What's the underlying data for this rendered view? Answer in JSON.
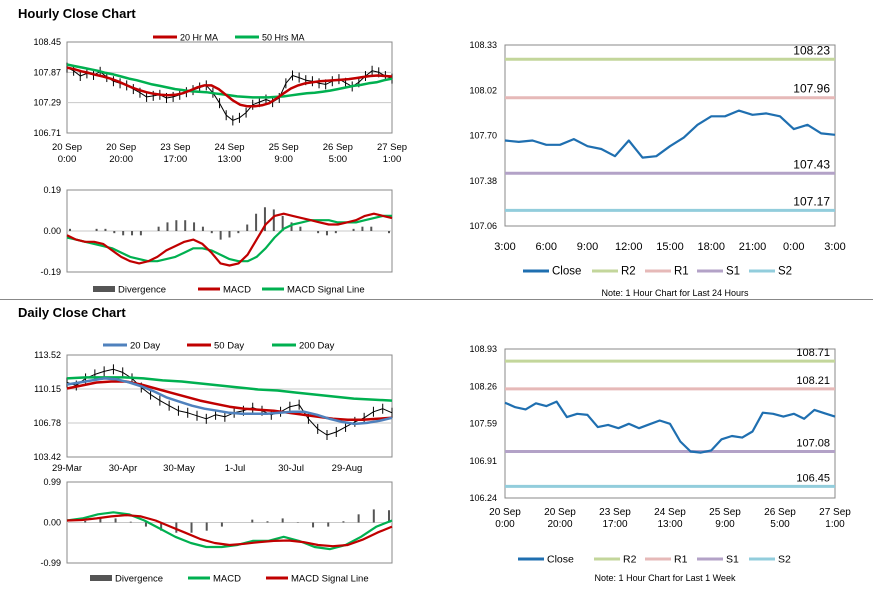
{
  "sections": {
    "hourly_title": "Hourly Close Chart",
    "daily_title": "Daily Close Chart"
  },
  "colors": {
    "ma_short": "#c00000",
    "ma_long": "#00b050",
    "ma_daily20": "#4f81bd",
    "close": "#1f6fb0",
    "r2": "#c3d69b",
    "r1": "#e6b9b8",
    "s1": "#b3a2c7",
    "s2": "#92cddc",
    "bars": "#555555",
    "grid": "#c8c8c8"
  },
  "chart_data": [
    {
      "id": "hourly_price",
      "type": "line",
      "ylim": [
        106.71,
        108.45
      ],
      "yticks": [
        "108.45",
        "107.87",
        "107.29",
        "106.71"
      ],
      "xticks": [
        [
          "20 Sep",
          "0:00"
        ],
        [
          "20 Sep",
          "20:00"
        ],
        [
          "23 Sep",
          "17:00"
        ],
        [
          "24 Sep",
          "13:00"
        ],
        [
          "25 Sep",
          "9:00"
        ],
        [
          "26 Sep",
          "5:00"
        ],
        [
          "27 Sep",
          "1:00"
        ]
      ],
      "legend": [
        "20 Hr MA",
        "50 Hrs MA"
      ],
      "price": [
        107.96,
        107.9,
        107.8,
        107.85,
        107.82,
        107.88,
        107.78,
        107.7,
        107.66,
        107.62,
        107.55,
        107.48,
        107.4,
        107.42,
        107.44,
        107.38,
        107.4,
        107.44,
        107.49,
        107.53,
        107.58,
        107.62,
        107.48,
        107.28,
        107.05,
        106.95,
        107.0,
        107.1,
        107.25,
        107.3,
        107.35,
        107.3,
        107.38,
        107.66,
        107.81,
        107.77,
        107.72,
        107.7,
        107.66,
        107.64,
        107.7,
        107.74,
        107.67,
        107.6,
        107.68,
        107.8,
        107.9,
        107.87,
        107.8,
        107.75
      ],
      "ma_short": [
        107.96,
        107.93,
        107.89,
        107.86,
        107.82,
        107.79,
        107.75,
        107.7,
        107.64,
        107.58,
        107.53,
        107.49,
        107.46,
        107.44,
        107.43,
        107.44,
        107.47,
        107.52,
        107.58,
        107.62,
        107.62,
        107.55,
        107.44,
        107.33,
        107.25,
        107.22,
        107.22,
        107.24,
        107.28,
        107.37,
        107.47,
        107.56,
        107.62,
        107.66,
        107.68,
        107.7,
        107.71,
        107.72,
        107.73,
        107.74,
        107.76,
        107.78,
        107.8,
        107.81,
        107.8,
        107.79
      ],
      "ma_long": [
        108.02,
        107.99,
        107.96,
        107.93,
        107.9,
        107.86,
        107.83,
        107.79,
        107.75,
        107.72,
        107.68,
        107.64,
        107.61,
        107.58,
        107.55,
        107.53,
        107.51,
        107.5,
        107.49,
        107.47,
        107.45,
        107.43,
        107.41,
        107.4,
        107.39,
        107.39,
        107.39,
        107.4,
        107.41,
        107.43,
        107.45,
        107.47,
        107.48,
        107.5,
        107.52,
        107.55,
        107.58,
        107.61,
        107.63,
        107.66,
        107.68,
        107.72,
        107.75
      ]
    },
    {
      "id": "hourly_macd",
      "type": "line",
      "ylim": [
        -0.19,
        0.19
      ],
      "yticks": [
        "0.19",
        "0.00",
        "-0.19"
      ],
      "legend": [
        "Divergence",
        "MACD",
        "MACD Signal Line"
      ],
      "macd": [
        -0.02,
        -0.04,
        -0.05,
        -0.05,
        -0.06,
        -0.09,
        -0.12,
        -0.14,
        -0.15,
        -0.14,
        -0.12,
        -0.09,
        -0.07,
        -0.05,
        -0.04,
        -0.06,
        -0.1,
        -0.15,
        -0.16,
        -0.15,
        -0.11,
        -0.04,
        0.03,
        0.07,
        0.08,
        0.07,
        0.06,
        0.05,
        0.04,
        0.03,
        0.03,
        0.04,
        0.05,
        0.07,
        0.08,
        0.07,
        0.06
      ],
      "signal": [
        -0.03,
        -0.04,
        -0.05,
        -0.06,
        -0.07,
        -0.08,
        -0.1,
        -0.12,
        -0.13,
        -0.14,
        -0.14,
        -0.13,
        -0.12,
        -0.1,
        -0.08,
        -0.08,
        -0.09,
        -0.11,
        -0.13,
        -0.14,
        -0.14,
        -0.12,
        -0.08,
        -0.03,
        0.01,
        0.03,
        0.04,
        0.05,
        0.05,
        0.05,
        0.04,
        0.04,
        0.04,
        0.05,
        0.06,
        0.07,
        0.07
      ],
      "divergence": [
        0.01,
        0.0,
        0.0,
        0.01,
        0.01,
        -0.01,
        -0.02,
        -0.02,
        -0.02,
        0.0,
        0.02,
        0.04,
        0.05,
        0.05,
        0.04,
        0.02,
        -0.01,
        -0.04,
        -0.03,
        -0.01,
        0.03,
        0.08,
        0.11,
        0.1,
        0.07,
        0.04,
        0.02,
        0.0,
        -0.01,
        -0.02,
        -0.01,
        0.0,
        0.01,
        0.02,
        0.02,
        0.0,
        -0.01
      ]
    },
    {
      "id": "hourly_pivots",
      "type": "line",
      "ylim": [
        107.06,
        108.33
      ],
      "yticks": [
        "108.33",
        "108.02",
        "107.70",
        "107.38",
        "107.06"
      ],
      "xticks": [
        "3:00",
        "6:00",
        "9:00",
        "12:00",
        "15:00",
        "18:00",
        "21:00",
        "0:00",
        "3:00"
      ],
      "levels": {
        "R2": 108.23,
        "R1": 107.96,
        "S1": 107.43,
        "S2": 107.17
      },
      "level_labels": {
        "R2": "108.23",
        "R1": "107.96",
        "S1": "107.43",
        "S2": "107.17"
      },
      "close": [
        107.66,
        107.65,
        107.66,
        107.63,
        107.63,
        107.67,
        107.62,
        107.6,
        107.55,
        107.66,
        107.54,
        107.55,
        107.62,
        107.68,
        107.77,
        107.83,
        107.83,
        107.87,
        107.84,
        107.85,
        107.83,
        107.74,
        107.77,
        107.71,
        107.7
      ],
      "legend": [
        "Close",
        "R2",
        "R1",
        "S1",
        "S2"
      ],
      "note": "Note: 1 Hour Chart for Last 24 Hours"
    },
    {
      "id": "daily_price",
      "type": "line",
      "ylim": [
        103.42,
        113.52
      ],
      "yticks": [
        "113.52",
        "110.15",
        "106.78",
        "103.42"
      ],
      "xticks": [
        "29-Mar",
        "30-Apr",
        "30-May",
        "1-Jul",
        "30-Jul",
        "29-Aug"
      ],
      "legend": [
        "20 Day",
        "50 Day",
        "200 Day"
      ],
      "price": [
        110.8,
        110.5,
        111.2,
        111.6,
        111.9,
        112.1,
        111.8,
        111.2,
        110.3,
        109.6,
        109.0,
        108.5,
        108.0,
        107.8,
        107.5,
        107.2,
        107.6,
        107.4,
        107.8,
        108.0,
        108.3,
        108.0,
        107.6,
        107.9,
        108.4,
        108.6,
        107.2,
        106.2,
        105.6,
        105.9,
        106.4,
        106.9,
        107.3,
        107.9,
        108.2,
        107.8
      ],
      "ma_20": [
        110.6,
        110.8,
        111.0,
        111.2,
        111.1,
        110.8,
        110.4,
        109.9,
        109.3,
        108.9,
        108.5,
        108.2,
        108.0,
        107.8,
        107.7,
        107.7,
        107.7,
        107.8,
        107.9,
        107.9,
        107.6,
        107.2,
        106.9,
        106.7,
        106.8,
        107.0,
        107.3
      ],
      "ma_50": [
        110.2,
        110.5,
        110.8,
        110.9,
        110.9,
        110.6,
        110.2,
        109.8,
        109.4,
        109.0,
        108.7,
        108.4,
        108.2,
        108.1,
        108.0,
        107.8,
        107.6,
        107.4,
        107.2,
        107.1,
        107.1,
        107.2,
        107.3
      ],
      "ma_200": [
        111.2,
        111.3,
        111.3,
        111.3,
        111.2,
        111.0,
        110.9,
        110.7,
        110.5,
        110.3,
        110.1,
        110.0,
        109.8,
        109.6,
        109.4,
        109.2,
        109.1,
        109.0
      ],
      "note": ""
    },
    {
      "id": "daily_macd",
      "type": "line",
      "ylim": [
        -0.99,
        0.99
      ],
      "yticks": [
        "0.99",
        "0.00",
        "-0.99"
      ],
      "legend": [
        "Divergence",
        "MACD",
        "MACD Signal Line"
      ],
      "macd": [
        0.05,
        0.1,
        0.2,
        0.25,
        0.2,
        0.05,
        -0.15,
        -0.35,
        -0.5,
        -0.6,
        -0.6,
        -0.55,
        -0.45,
        -0.45,
        -0.35,
        -0.45,
        -0.6,
        -0.65,
        -0.55,
        -0.35,
        -0.1,
        0.05
      ],
      "signal": [
        0.05,
        0.06,
        0.1,
        0.15,
        0.18,
        0.15,
        0.05,
        -0.1,
        -0.25,
        -0.4,
        -0.5,
        -0.55,
        -0.52,
        -0.48,
        -0.45,
        -0.44,
        -0.48,
        -0.55,
        -0.58,
        -0.55,
        -0.42,
        -0.25,
        -0.1
      ],
      "divergence": [
        0.0,
        0.04,
        0.1,
        0.1,
        0.02,
        -0.1,
        -0.2,
        -0.25,
        -0.25,
        -0.2,
        -0.1,
        0.0,
        0.07,
        0.03,
        0.1,
        -0.01,
        -0.12,
        -0.1,
        0.03,
        0.2,
        0.32,
        0.3
      ]
    },
    {
      "id": "daily_pivots",
      "type": "line",
      "ylim": [
        106.24,
        108.93
      ],
      "yticks": [
        "108.93",
        "108.26",
        "107.59",
        "106.91",
        "106.24"
      ],
      "xticks": [
        [
          "20 Sep",
          "0:00"
        ],
        [
          "20 Sep",
          "20:00"
        ],
        [
          "23 Sep",
          "17:00"
        ],
        [
          "24 Sep",
          "13:00"
        ],
        [
          "25 Sep",
          "9:00"
        ],
        [
          "26 Sep",
          "5:00"
        ],
        [
          "27 Sep",
          "1:00"
        ]
      ],
      "levels": {
        "R2": 108.71,
        "R1": 108.21,
        "S1": 107.08,
        "S2": 106.45
      },
      "level_labels": {
        "R2": "108.71",
        "R1": "108.21",
        "S1": "107.08",
        "S2": "106.45"
      },
      "close": [
        107.96,
        107.88,
        107.84,
        107.95,
        107.9,
        107.98,
        107.7,
        107.76,
        107.74,
        107.52,
        107.56,
        107.5,
        107.58,
        107.5,
        107.57,
        107.64,
        107.58,
        107.26,
        107.08,
        107.06,
        107.1,
        107.3,
        107.36,
        107.33,
        107.44,
        107.78,
        107.76,
        107.71,
        107.76,
        107.67,
        107.83,
        107.77,
        107.71
      ],
      "legend": [
        "Close",
        "R2",
        "R1",
        "S1",
        "S2"
      ],
      "note": "Note: 1 Hour Chart for Last 1 Week"
    }
  ]
}
